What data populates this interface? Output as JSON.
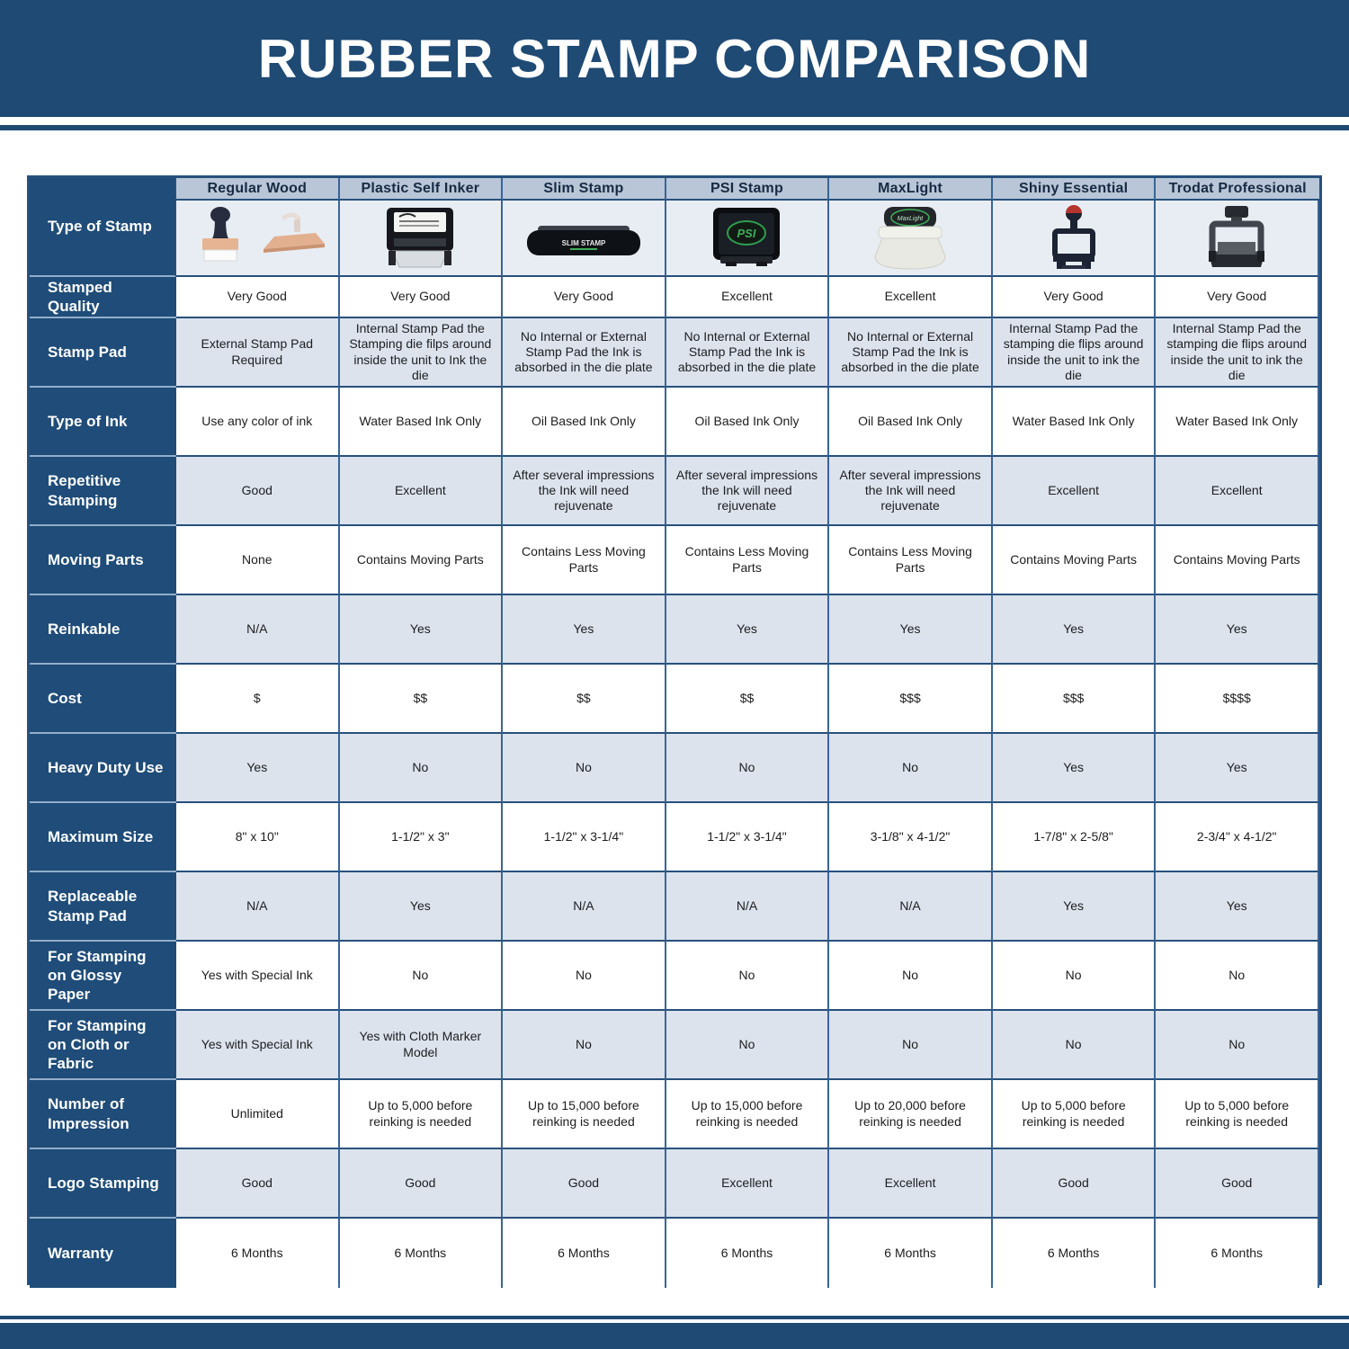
{
  "title": "RUBBER STAMP COMPARISON",
  "colors": {
    "banner_navy": "#1e4a74",
    "row_header_navy": "#1f4c78",
    "column_header_bg": "#b8c6d8",
    "light_row_bg": "#dce3ed",
    "image_row_bg": "#e8edf3",
    "border_dark": "#27507c",
    "border_vertical": "#3a6595"
  },
  "chart_data": {
    "type": "table",
    "title": "RUBBER STAMP COMPARISON",
    "corner_row_label": "Type of Stamp",
    "columns": [
      "Regular Wood",
      "Plastic Self Inker",
      "Slim Stamp",
      "PSI Stamp",
      "MaxLight",
      "Shiny Essential",
      "Trodat Professional"
    ],
    "column_icons": [
      "regular-wood-stamp-icon",
      "plastic-self-inker-stamp-icon",
      "slim-stamp-icon",
      "psi-stamp-icon",
      "maxlight-stamp-icon",
      "shiny-essential-stamp-icon",
      "trodat-professional-stamp-icon"
    ],
    "rows": [
      {
        "label": "Stamped Quality",
        "values": [
          "Very Good",
          "Very Good",
          "Very Good",
          "Excellent",
          "Excellent",
          "Very Good",
          "Very Good"
        ]
      },
      {
        "label": "Stamp Pad",
        "values": [
          "External Stamp Pad Required",
          "Internal Stamp Pad the Stamping die filps around inside the unit to Ink the die",
          "No Internal or External Stamp Pad the Ink is absorbed in the die plate",
          "No Internal or External Stamp Pad the Ink is absorbed in the die plate",
          "No Internal or External Stamp Pad the Ink is absorbed in the die plate",
          "Internal Stamp Pad the stamping die flips around inside the unit to ink the die",
          "Internal Stamp Pad the stamping die flips around inside the unit to ink the die"
        ]
      },
      {
        "label": "Type of Ink",
        "values": [
          "Use any color of ink",
          "Water Based Ink Only",
          "Oil Based Ink Only",
          "Oil Based Ink Only",
          "Oil Based Ink Only",
          "Water Based Ink Only",
          "Water Based Ink Only"
        ]
      },
      {
        "label": "Repetitive Stamping",
        "values": [
          "Good",
          "Excellent",
          "After several impressions the Ink will need rejuvenate",
          "After several impressions the Ink will need rejuvenate",
          "After several impressions the Ink will need rejuvenate",
          "Excellent",
          "Excellent"
        ]
      },
      {
        "label": "Moving Parts",
        "values": [
          "None",
          "Contains Moving Parts",
          "Contains Less Moving Parts",
          "Contains Less Moving Parts",
          "Contains Less Moving Parts",
          "Contains Moving Parts",
          "Contains Moving Parts"
        ]
      },
      {
        "label": "Reinkable",
        "values": [
          "N/A",
          "Yes",
          "Yes",
          "Yes",
          "Yes",
          "Yes",
          "Yes"
        ]
      },
      {
        "label": "Cost",
        "values": [
          "$",
          "$$",
          "$$",
          "$$",
          "$$$",
          "$$$",
          "$$$$"
        ]
      },
      {
        "label": "Heavy Duty Use",
        "values": [
          "Yes",
          "No",
          "No",
          "No",
          "No",
          "Yes",
          "Yes"
        ]
      },
      {
        "label": "Maximum Size",
        "values": [
          "8\" x 10\"",
          "1-1/2\" x 3\"",
          "1-1/2\" x 3-1/4\"",
          "1-1/2\" x 3-1/4\"",
          "3-1/8\" x 4-1/2\"",
          "1-7/8\" x 2-5/8\"",
          "2-3/4\" x 4-1/2\""
        ]
      },
      {
        "label": "Replaceable Stamp Pad",
        "values": [
          "N/A",
          "Yes",
          "N/A",
          "N/A",
          "N/A",
          "Yes",
          "Yes"
        ]
      },
      {
        "label": "For Stamping on Glossy Paper",
        "values": [
          "Yes with Special Ink",
          "No",
          "No",
          "No",
          "No",
          "No",
          "No"
        ]
      },
      {
        "label": "For Stamping on Cloth or Fabric",
        "values": [
          "Yes with Special Ink",
          "Yes with Cloth Marker Model",
          "No",
          "No",
          "No",
          "No",
          "No"
        ]
      },
      {
        "label": "Number of Impression",
        "values": [
          "Unlimited",
          "Up to 5,000 before reinking is needed",
          "Up to 15,000 before reinking is needed",
          "Up to 15,000 before reinking is needed",
          "Up to 20,000 before reinking is needed",
          "Up to 5,000 before reinking is needed",
          "Up to 5,000 before reinking is needed"
        ]
      },
      {
        "label": "Logo Stamping",
        "values": [
          "Good",
          "Good",
          "Good",
          "Excellent",
          "Excellent",
          "Good",
          "Good"
        ]
      },
      {
        "label": "Warranty",
        "values": [
          "6 Months",
          "6 Months",
          "6 Months",
          "6 Months",
          "6 Months",
          "6 Months",
          "6 Months"
        ]
      }
    ]
  }
}
